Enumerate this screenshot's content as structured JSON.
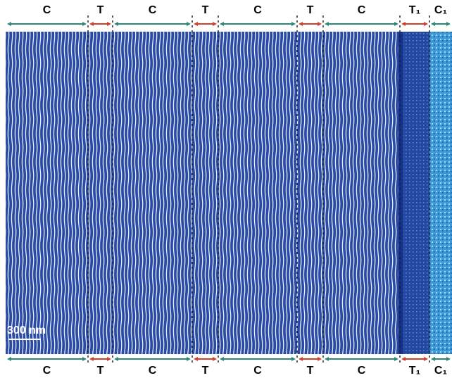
{
  "top_labels": [
    "C",
    "T",
    "C",
    "T",
    "C",
    "T",
    "C",
    "T₁",
    "C₁"
  ],
  "bottom_labels": [
    "C",
    "T",
    "C",
    "T",
    "C",
    "T",
    "C",
    "T₁",
    "C₁"
  ],
  "scale_bar": "300 nm"
}
